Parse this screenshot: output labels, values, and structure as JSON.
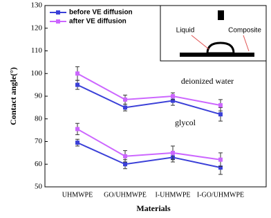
{
  "chart_data": {
    "type": "line",
    "x_label": "Materials",
    "y_label": "Contact angle(°)",
    "categories": [
      "UHMWPE",
      "GO/UHMWPE",
      "I-UHMWPE",
      "I-GO/UHMWPE"
    ],
    "ylim": [
      50,
      130
    ],
    "yticks": [
      50,
      60,
      70,
      80,
      90,
      100,
      110,
      120,
      130
    ],
    "series": [
      {
        "name": "before VE diffusion",
        "color": "#3b40d8",
        "water": [
          95,
          85,
          88,
          82
        ],
        "water_err": [
          2,
          1.5,
          2,
          3
        ],
        "glycol": [
          69.5,
          60,
          63,
          58.5
        ],
        "glycol_err": [
          1.5,
          2,
          2,
          3
        ]
      },
      {
        "name": "after VE diffusion",
        "color": "#cc66ff",
        "water": [
          100,
          88.5,
          90,
          86
        ],
        "water_err": [
          3,
          2,
          1.5,
          2.5
        ],
        "glycol": [
          75.5,
          63.5,
          65,
          62
        ],
        "glycol_err": [
          2.5,
          2.5,
          3,
          3
        ]
      }
    ],
    "annotations": [
      "deionized water",
      "glycol"
    ],
    "inset_labels": [
      "Liquid",
      "Composite"
    ]
  }
}
